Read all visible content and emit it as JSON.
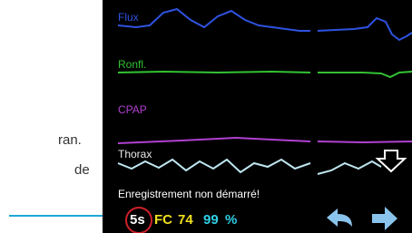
{
  "side_text": [
    "ran.",
    "de"
  ],
  "screen": {
    "channels": [
      "Flux",
      "Ronfl.",
      "CPAP",
      "Thorax"
    ],
    "status": "Enregistrement non démarré!",
    "interval": "5s",
    "hr_label": "FC",
    "hr_value": 74,
    "spo2_value": 99,
    "spo2_unit": "%"
  }
}
